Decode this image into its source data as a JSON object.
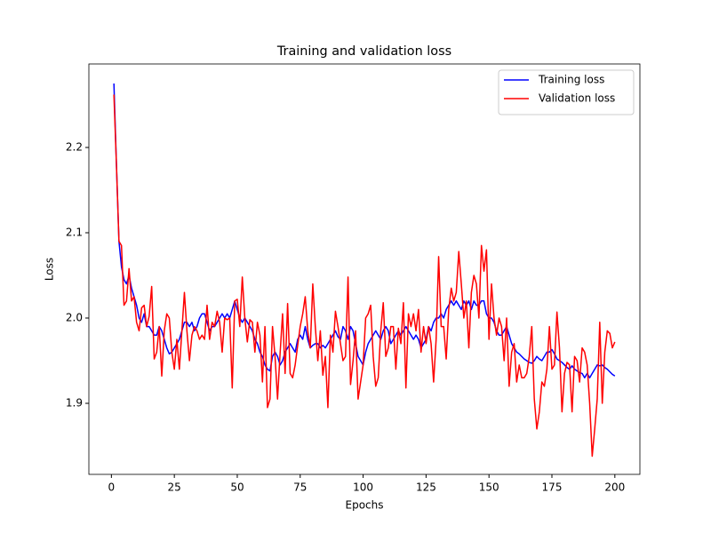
{
  "chart_data": {
    "type": "line",
    "title": "Training and validation loss",
    "xlabel": "Epochs",
    "ylabel": "Loss",
    "x": [
      1,
      2,
      3,
      4,
      5,
      6,
      7,
      8,
      9,
      10,
      11,
      12,
      13,
      14,
      15,
      16,
      17,
      18,
      19,
      20,
      21,
      22,
      23,
      24,
      25,
      26,
      27,
      28,
      29,
      30,
      31,
      32,
      33,
      34,
      35,
      36,
      37,
      38,
      39,
      40,
      41,
      42,
      43,
      44,
      45,
      46,
      47,
      48,
      49,
      50,
      51,
      52,
      53,
      54,
      55,
      56,
      57,
      58,
      59,
      60,
      61,
      62,
      63,
      64,
      65,
      66,
      67,
      68,
      69,
      70,
      71,
      72,
      73,
      74,
      75,
      76,
      77,
      78,
      79,
      80,
      81,
      82,
      83,
      84,
      85,
      86,
      87,
      88,
      89,
      90,
      91,
      92,
      93,
      94,
      95,
      96,
      97,
      98,
      99,
      100,
      101,
      102,
      103,
      104,
      105,
      106,
      107,
      108,
      109,
      110,
      111,
      112,
      113,
      114,
      115,
      116,
      117,
      118,
      119,
      120,
      121,
      122,
      123,
      124,
      125,
      126,
      127,
      128,
      129,
      130,
      131,
      132,
      133,
      134,
      135,
      136,
      137,
      138,
      139,
      140,
      141,
      142,
      143,
      144,
      145,
      146,
      147,
      148,
      149,
      150,
      151,
      152,
      153,
      154,
      155,
      156,
      157,
      158,
      159,
      160,
      161,
      162,
      163,
      164,
      165,
      166,
      167,
      168,
      169,
      170,
      171,
      172,
      173,
      174,
      175,
      176,
      177,
      178,
      179,
      180,
      181,
      182,
      183,
      184,
      185,
      186,
      187,
      188,
      189,
      190,
      191,
      192,
      193,
      194,
      195,
      196,
      197,
      198,
      199,
      200
    ],
    "series": [
      {
        "name": "Training loss",
        "color": "#0000ff",
        "values": [
          2.275,
          2.18,
          2.09,
          2.06,
          2.045,
          2.04,
          2.05,
          2.035,
          2.025,
          2.015,
          2.0,
          1.995,
          2.005,
          1.99,
          1.99,
          1.985,
          1.98,
          1.98,
          1.99,
          1.985,
          1.975,
          1.965,
          1.958,
          1.96,
          1.965,
          1.97,
          1.975,
          1.985,
          1.995,
          1.995,
          1.99,
          1.995,
          1.985,
          1.99,
          2.0,
          2.005,
          2.005,
          1.995,
          1.985,
          1.99,
          1.99,
          1.995,
          2.0,
          2.005,
          2.0,
          2.005,
          2.0,
          2.01,
          2.02,
          2.01,
          2.0,
          1.995,
          2.0,
          1.995,
          1.99,
          1.985,
          1.975,
          1.97,
          1.96,
          1.955,
          1.945,
          1.94,
          1.938,
          1.955,
          1.96,
          1.955,
          1.945,
          1.95,
          1.96,
          1.965,
          1.97,
          1.965,
          1.96,
          1.975,
          1.98,
          1.975,
          1.99,
          1.975,
          1.965,
          1.968,
          1.97,
          1.97,
          1.965,
          1.968,
          1.965,
          1.97,
          1.975,
          1.98,
          1.985,
          1.978,
          1.975,
          1.99,
          1.985,
          1.975,
          1.99,
          1.985,
          1.97,
          1.955,
          1.95,
          1.945,
          1.96,
          1.97,
          1.975,
          1.98,
          1.985,
          1.98,
          1.975,
          1.985,
          1.99,
          1.985,
          1.97,
          1.975,
          1.98,
          1.985,
          1.98,
          1.985,
          1.99,
          1.985,
          1.98,
          1.975,
          1.98,
          1.975,
          1.965,
          1.97,
          1.975,
          1.99,
          1.985,
          1.995,
          2.0,
          2.0,
          2.005,
          2.0,
          2.01,
          2.015,
          2.02,
          2.015,
          2.02,
          2.015,
          2.01,
          2.02,
          2.015,
          2.02,
          2.01,
          2.02,
          2.015,
          2.015,
          2.02,
          2.02,
          2.005,
          2.0,
          2.0,
          1.995,
          1.985,
          1.98,
          1.98,
          1.985,
          1.99,
          1.98,
          1.97,
          1.965,
          1.96,
          1.958,
          1.955,
          1.952,
          1.95,
          1.948,
          1.947,
          1.95,
          1.955,
          1.952,
          1.95,
          1.955,
          1.96,
          1.96,
          1.963,
          1.958,
          1.952,
          1.95,
          1.948,
          1.945,
          1.942,
          1.94,
          1.944,
          1.94,
          1.938,
          1.936,
          1.935,
          1.93,
          1.935,
          1.93,
          1.935,
          1.94,
          1.945,
          1.944,
          1.945,
          1.942,
          1.94,
          1.937,
          1.934,
          1.932
        ]
      },
      {
        "name": "Validation loss",
        "color": "#ff0000",
        "values": [
          2.262,
          2.18,
          2.09,
          2.085,
          2.015,
          2.02,
          2.058,
          2.02,
          2.025,
          1.995,
          1.985,
          2.012,
          2.015,
          1.99,
          2.002,
          2.037,
          1.952,
          1.96,
          1.99,
          1.932,
          1.985,
          2.005,
          2.0,
          1.96,
          1.94,
          1.975,
          1.94,
          1.985,
          2.03,
          1.985,
          1.95,
          1.98,
          1.99,
          1.985,
          1.975,
          1.98,
          1.975,
          2.015,
          1.975,
          1.995,
          1.99,
          2.008,
          1.995,
          1.96,
          2.0,
          1.998,
          2.0,
          1.918,
          2.02,
          2.022,
          1.99,
          2.048,
          2.0,
          1.972,
          1.998,
          1.995,
          1.96,
          1.995,
          1.98,
          1.925,
          1.99,
          1.895,
          1.905,
          1.99,
          1.955,
          1.905,
          1.958,
          2.005,
          1.935,
          2.017,
          1.935,
          1.93,
          1.945,
          1.968,
          1.99,
          2.005,
          2.025,
          1.985,
          1.965,
          2.04,
          1.99,
          1.95,
          1.985,
          1.933,
          1.955,
          1.895,
          1.98,
          1.96,
          2.008,
          1.99,
          1.97,
          1.95,
          1.955,
          2.048,
          1.922,
          1.95,
          1.985,
          1.905,
          1.925,
          1.945,
          2.0,
          2.005,
          2.015,
          1.955,
          1.92,
          1.93,
          1.985,
          2.018,
          1.955,
          1.965,
          1.99,
          1.99,
          1.94,
          1.988,
          1.97,
          2.018,
          1.918,
          2.005,
          1.99,
          2.005,
          1.985,
          2.01,
          1.96,
          1.99,
          1.97,
          1.99,
          1.97,
          1.925,
          1.975,
          2.072,
          1.99,
          1.99,
          1.952,
          2.01,
          2.035,
          2.02,
          2.03,
          2.078,
          2.04,
          2.0,
          2.02,
          1.965,
          2.03,
          2.05,
          2.04,
          2.0,
          2.085,
          2.055,
          2.08,
          1.975,
          2.04,
          2.0,
          1.98,
          2.0,
          1.99,
          1.95,
          2.0,
          1.92,
          1.96,
          1.97,
          1.925,
          1.945,
          1.93,
          1.93,
          1.935,
          1.955,
          1.99,
          1.905,
          1.87,
          1.89,
          1.925,
          1.92,
          1.94,
          1.99,
          1.94,
          1.945,
          2.007,
          1.965,
          1.89,
          1.935,
          1.948,
          1.945,
          1.89,
          1.955,
          1.95,
          1.925,
          1.965,
          1.96,
          1.945,
          1.9,
          1.838,
          1.87,
          1.905,
          1.995,
          1.9,
          1.96,
          1.985,
          1.982,
          1.965,
          1.972
        ]
      }
    ],
    "xlim": [
      -8.95,
      209.95
    ],
    "ylim": [
      1.8167,
      2.2979
    ],
    "xticks": [
      0,
      25,
      50,
      75,
      100,
      125,
      150,
      175,
      200
    ],
    "yticks": [
      1.9,
      {
        "value": 2,
        "label": "2.0"
      },
      2.1,
      2.2
    ],
    "legend": "upper right"
  }
}
